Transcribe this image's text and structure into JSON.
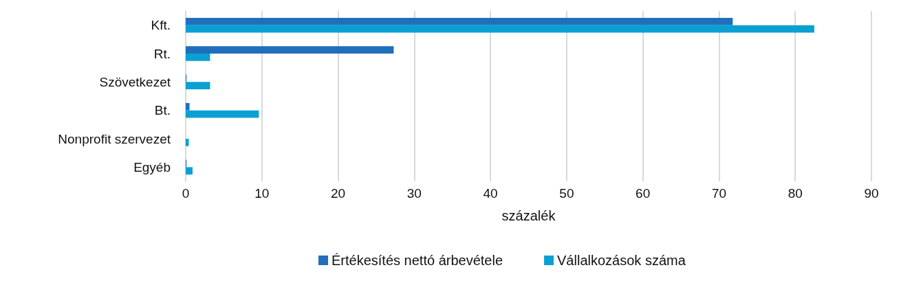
{
  "chart_data": {
    "type": "bar",
    "orientation": "horizontal",
    "xlabel": "százalék",
    "categories": [
      "Kft.",
      "Rt.",
      "Szövetkezet",
      "Bt.",
      "Nonprofit szervezet",
      "Egyéb"
    ],
    "series": [
      {
        "name": "Értékesítés nettó árbevétele",
        "color": "#1f6fbd",
        "values": [
          71.8,
          27.3,
          0.1,
          0.5,
          0,
          0.1
        ]
      },
      {
        "name": "Vállalkozások száma",
        "color": "#0aa0d2",
        "values": [
          82.5,
          3.2,
          3.2,
          9.6,
          0.4,
          0.9
        ]
      }
    ],
    "xlim": [
      0,
      90
    ],
    "xticks": [
      0,
      10,
      20,
      30,
      40,
      50,
      60,
      70,
      80,
      90
    ],
    "grid": "x",
    "legend": "bottom"
  }
}
